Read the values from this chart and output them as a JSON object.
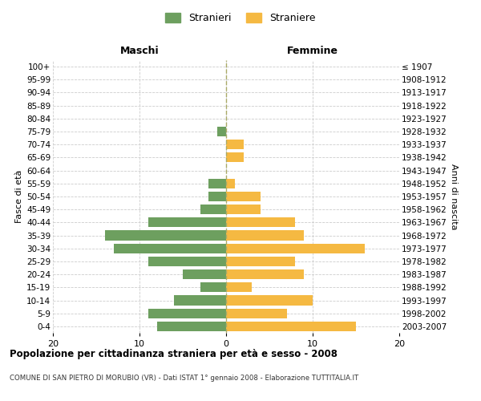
{
  "age_groups": [
    "0-4",
    "5-9",
    "10-14",
    "15-19",
    "20-24",
    "25-29",
    "30-34",
    "35-39",
    "40-44",
    "45-49",
    "50-54",
    "55-59",
    "60-64",
    "65-69",
    "70-74",
    "75-79",
    "80-84",
    "85-89",
    "90-94",
    "95-99",
    "100+"
  ],
  "birth_years": [
    "2003-2007",
    "1998-2002",
    "1993-1997",
    "1988-1992",
    "1983-1987",
    "1978-1982",
    "1973-1977",
    "1968-1972",
    "1963-1967",
    "1958-1962",
    "1953-1957",
    "1948-1952",
    "1943-1947",
    "1938-1942",
    "1933-1937",
    "1928-1932",
    "1923-1927",
    "1918-1922",
    "1913-1917",
    "1908-1912",
    "≤ 1907"
  ],
  "maschi": [
    8,
    9,
    6,
    3,
    5,
    9,
    13,
    14,
    9,
    3,
    2,
    2,
    0,
    0,
    0,
    1,
    0,
    0,
    0,
    0,
    0
  ],
  "femmine": [
    15,
    7,
    10,
    3,
    9,
    8,
    16,
    9,
    8,
    4,
    4,
    1,
    0,
    2,
    2,
    0,
    0,
    0,
    0,
    0,
    0
  ],
  "maschi_color": "#6d9f5f",
  "femmine_color": "#f5b942",
  "background_color": "#ffffff",
  "grid_color": "#cccccc",
  "title": "Popolazione per cittadinanza straniera per età e sesso - 2008",
  "subtitle": "COMUNE DI SAN PIETRO DI MORUBIO (VR) - Dati ISTAT 1° gennaio 2008 - Elaborazione TUTTITALIA.IT",
  "xlabel_left": "Maschi",
  "xlabel_right": "Femmine",
  "ylabel_left": "Fasce di età",
  "ylabel_right": "Anni di nascita",
  "legend_maschi": "Stranieri",
  "legend_femmine": "Straniere",
  "xlim": 20,
  "bar_height": 0.75
}
